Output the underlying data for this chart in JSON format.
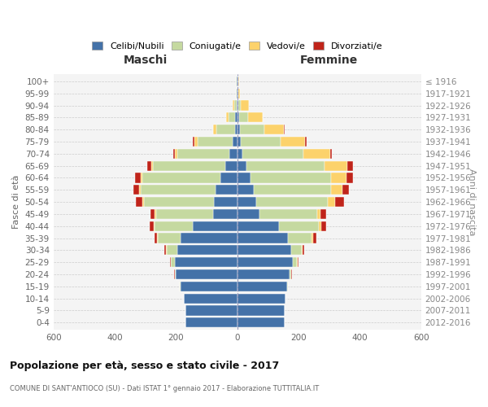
{
  "age_groups": [
    "0-4",
    "5-9",
    "10-14",
    "15-19",
    "20-24",
    "25-29",
    "30-34",
    "35-39",
    "40-44",
    "45-49",
    "50-54",
    "55-59",
    "60-64",
    "65-69",
    "70-74",
    "75-79",
    "80-84",
    "85-89",
    "90-94",
    "95-99",
    "100+"
  ],
  "birth_years": [
    "2012-2016",
    "2007-2011",
    "2002-2006",
    "1997-2001",
    "1992-1996",
    "1987-1991",
    "1982-1986",
    "1977-1981",
    "1972-1976",
    "1967-1971",
    "1962-1966",
    "1957-1961",
    "1952-1956",
    "1947-1951",
    "1942-1946",
    "1937-1941",
    "1932-1936",
    "1927-1931",
    "1922-1926",
    "1917-1921",
    "≤ 1916"
  ],
  "male": {
    "celibi": [
      170,
      170,
      175,
      185,
      200,
      205,
      195,
      185,
      145,
      80,
      75,
      70,
      55,
      40,
      25,
      15,
      8,
      6,
      3,
      2,
      2
    ],
    "coniugati": [
      0,
      0,
      0,
      2,
      5,
      12,
      35,
      75,
      125,
      185,
      230,
      245,
      255,
      235,
      170,
      115,
      60,
      22,
      7,
      3,
      2
    ],
    "vedovi": [
      0,
      0,
      0,
      0,
      0,
      0,
      2,
      3,
      4,
      5,
      5,
      5,
      5,
      5,
      8,
      10,
      12,
      8,
      4,
      0,
      0
    ],
    "divorziati": [
      0,
      0,
      0,
      0,
      2,
      2,
      5,
      8,
      12,
      12,
      22,
      18,
      18,
      15,
      5,
      5,
      0,
      0,
      0,
      0,
      0
    ]
  },
  "female": {
    "nubili": [
      155,
      155,
      158,
      162,
      170,
      180,
      175,
      165,
      135,
      72,
      62,
      55,
      42,
      30,
      16,
      10,
      8,
      6,
      3,
      2,
      2
    ],
    "coniugate": [
      0,
      0,
      0,
      2,
      5,
      15,
      35,
      78,
      132,
      188,
      232,
      252,
      265,
      255,
      200,
      130,
      80,
      28,
      8,
      2,
      2
    ],
    "vedove": [
      0,
      0,
      0,
      0,
      2,
      2,
      4,
      5,
      8,
      12,
      25,
      35,
      50,
      75,
      88,
      80,
      65,
      48,
      28,
      5,
      2
    ],
    "divorziate": [
      0,
      0,
      0,
      0,
      2,
      2,
      5,
      10,
      15,
      18,
      28,
      22,
      20,
      18,
      5,
      5,
      2,
      0,
      0,
      0,
      0
    ]
  },
  "colors": {
    "celibi": "#4472a8",
    "coniugati": "#c5d9a0",
    "vedovi": "#fcd26b",
    "divorziati": "#c0241a"
  },
  "legend_labels": [
    "Celibi/Nubili",
    "Coniugati/e",
    "Vedovi/e",
    "Divorziati/e"
  ],
  "title": "Popolazione per età, sesso e stato civile - 2017",
  "subtitle": "COMUNE DI SANT'ANTIOCO (SU) - Dati ISTAT 1° gennaio 2017 - Elaborazione TUTTITALIA.IT",
  "xlabel_left": "Maschi",
  "xlabel_right": "Femmine",
  "ylabel_left": "Fasce di età",
  "ylabel_right": "Anni di nascita",
  "xlim": 600,
  "bg_color": "#ffffff",
  "grid_color": "#cccccc"
}
